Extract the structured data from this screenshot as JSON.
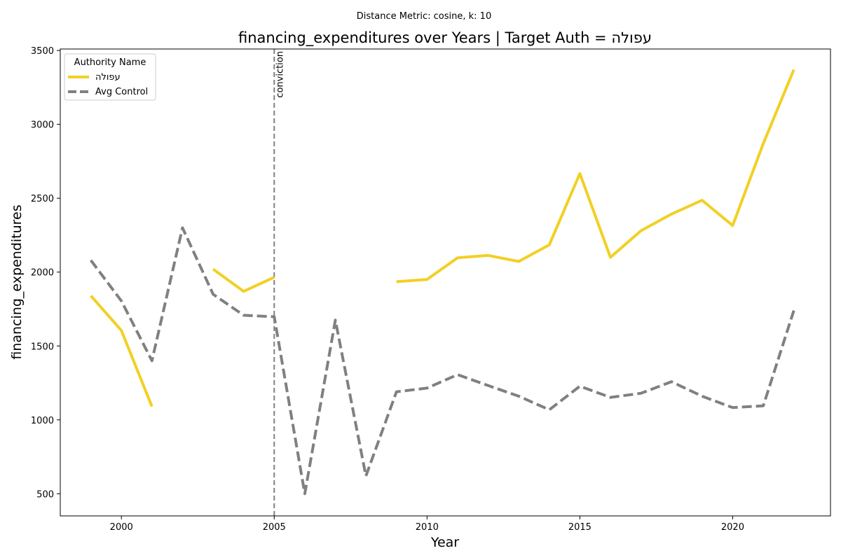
{
  "chart_data": {
    "type": "line",
    "suptitle": "Distance Metric: cosine, k: 10",
    "title": "financing_expenditures over Years | Target Auth = עפולה",
    "xlabel": "Year",
    "ylabel": "financing_expenditures",
    "xlim": [
      1998.0,
      2023.2
    ],
    "ylim": [
      350,
      3510
    ],
    "xticks": [
      2000,
      2005,
      2010,
      2015,
      2020
    ],
    "yticks": [
      500,
      1000,
      1500,
      2000,
      2500,
      3000,
      3500
    ],
    "x": [
      1999,
      2000,
      2001,
      2002,
      2003,
      2004,
      2005,
      2006,
      2007,
      2008,
      2009,
      2010,
      2011,
      2012,
      2013,
      2014,
      2015,
      2016,
      2017,
      2018,
      2019,
      2020,
      2021,
      2022
    ],
    "series": [
      {
        "name": "עפולה",
        "color": "#f2d024",
        "dashed": false,
        "values": [
          1840,
          1605,
          1090,
          null,
          2020,
          1870,
          1965,
          null,
          null,
          null,
          1935,
          1950,
          2097,
          2113,
          2072,
          2185,
          2667,
          2100,
          2280,
          2393,
          2486,
          2315,
          2870,
          3370
        ]
      },
      {
        "name": "Avg Control",
        "color": "#808080",
        "dashed": true,
        "values": [
          2080,
          1805,
          1400,
          2300,
          1850,
          1708,
          1698,
          500,
          1675,
          620,
          1190,
          1215,
          1306,
          1232,
          1160,
          1068,
          1228,
          1152,
          1180,
          1258,
          1160,
          1083,
          1095,
          1740
        ]
      }
    ],
    "vline": {
      "x": 2005,
      "label": "conviction",
      "color": "#808080"
    },
    "legend": {
      "title": "Authority Name",
      "position": "top-left"
    },
    "grid": false
  }
}
